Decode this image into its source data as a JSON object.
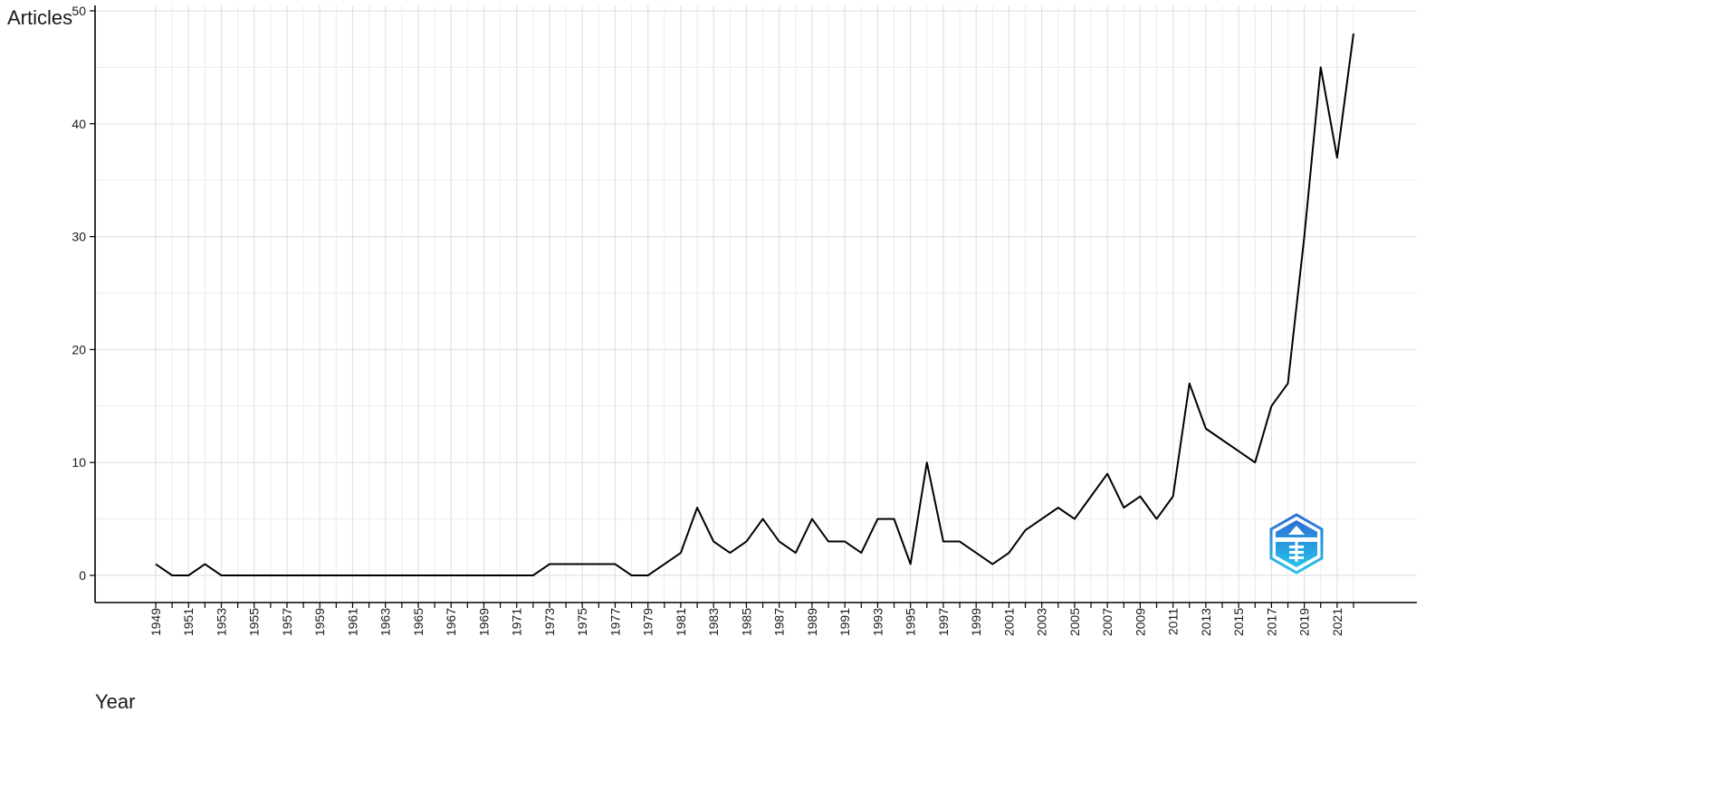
{
  "chart_data": {
    "type": "line",
    "xlabel": "Year",
    "ylabel": "Articles",
    "xlim": [
      1949,
      2022
    ],
    "ylim": [
      0,
      50
    ],
    "x_tick_labels": [
      "1949",
      "1951",
      "1953",
      "1955",
      "1957",
      "1959",
      "1961",
      "1963",
      "1965",
      "1967",
      "1969",
      "1971",
      "1973",
      "1975",
      "1977",
      "1979",
      "1981",
      "1983",
      "1985",
      "1987",
      "1989",
      "1991",
      "1993",
      "1995",
      "1997",
      "1999",
      "2001",
      "2003",
      "2005",
      "2007",
      "2009",
      "2011",
      "2013",
      "2015",
      "2017",
      "2019",
      "2021"
    ],
    "y_ticks": [
      0,
      10,
      20,
      30,
      40,
      50
    ],
    "grid": true,
    "series": [
      {
        "x": [
          1949,
          1950,
          1951,
          1952,
          1953,
          1954,
          1955,
          1956,
          1957,
          1958,
          1959,
          1960,
          1961,
          1962,
          1963,
          1964,
          1965,
          1966,
          1967,
          1968,
          1969,
          1970,
          1971,
          1972,
          1973,
          1974,
          1975,
          1976,
          1977,
          1978,
          1979,
          1980,
          1981,
          1982,
          1983,
          1984,
          1985,
          1986,
          1987,
          1988,
          1989,
          1990,
          1991,
          1992,
          1993,
          1994,
          1995,
          1996,
          1997,
          1998,
          1999,
          2000,
          2001,
          2002,
          2003,
          2004,
          2005,
          2006,
          2007,
          2008,
          2009,
          2010,
          2011,
          2012,
          2013,
          2014,
          2015,
          2016,
          2017,
          2018,
          2019,
          2020,
          2021,
          2022
        ],
        "values": [
          1,
          0,
          0,
          1,
          0,
          0,
          0,
          0,
          0,
          0,
          0,
          0,
          0,
          0,
          0,
          0,
          0,
          0,
          0,
          0,
          0,
          0,
          0,
          0,
          1,
          1,
          1,
          1,
          1,
          0,
          0,
          1,
          2,
          6,
          3,
          2,
          3,
          5,
          3,
          2,
          5,
          3,
          3,
          2,
          5,
          5,
          1,
          10,
          3,
          3,
          2,
          1,
          2,
          4,
          5,
          6,
          5,
          7,
          9,
          6,
          7,
          5,
          7,
          17,
          13,
          12,
          11,
          10,
          15,
          17,
          30,
          45,
          37,
          48
        ],
        "color": "#000000"
      }
    ]
  }
}
